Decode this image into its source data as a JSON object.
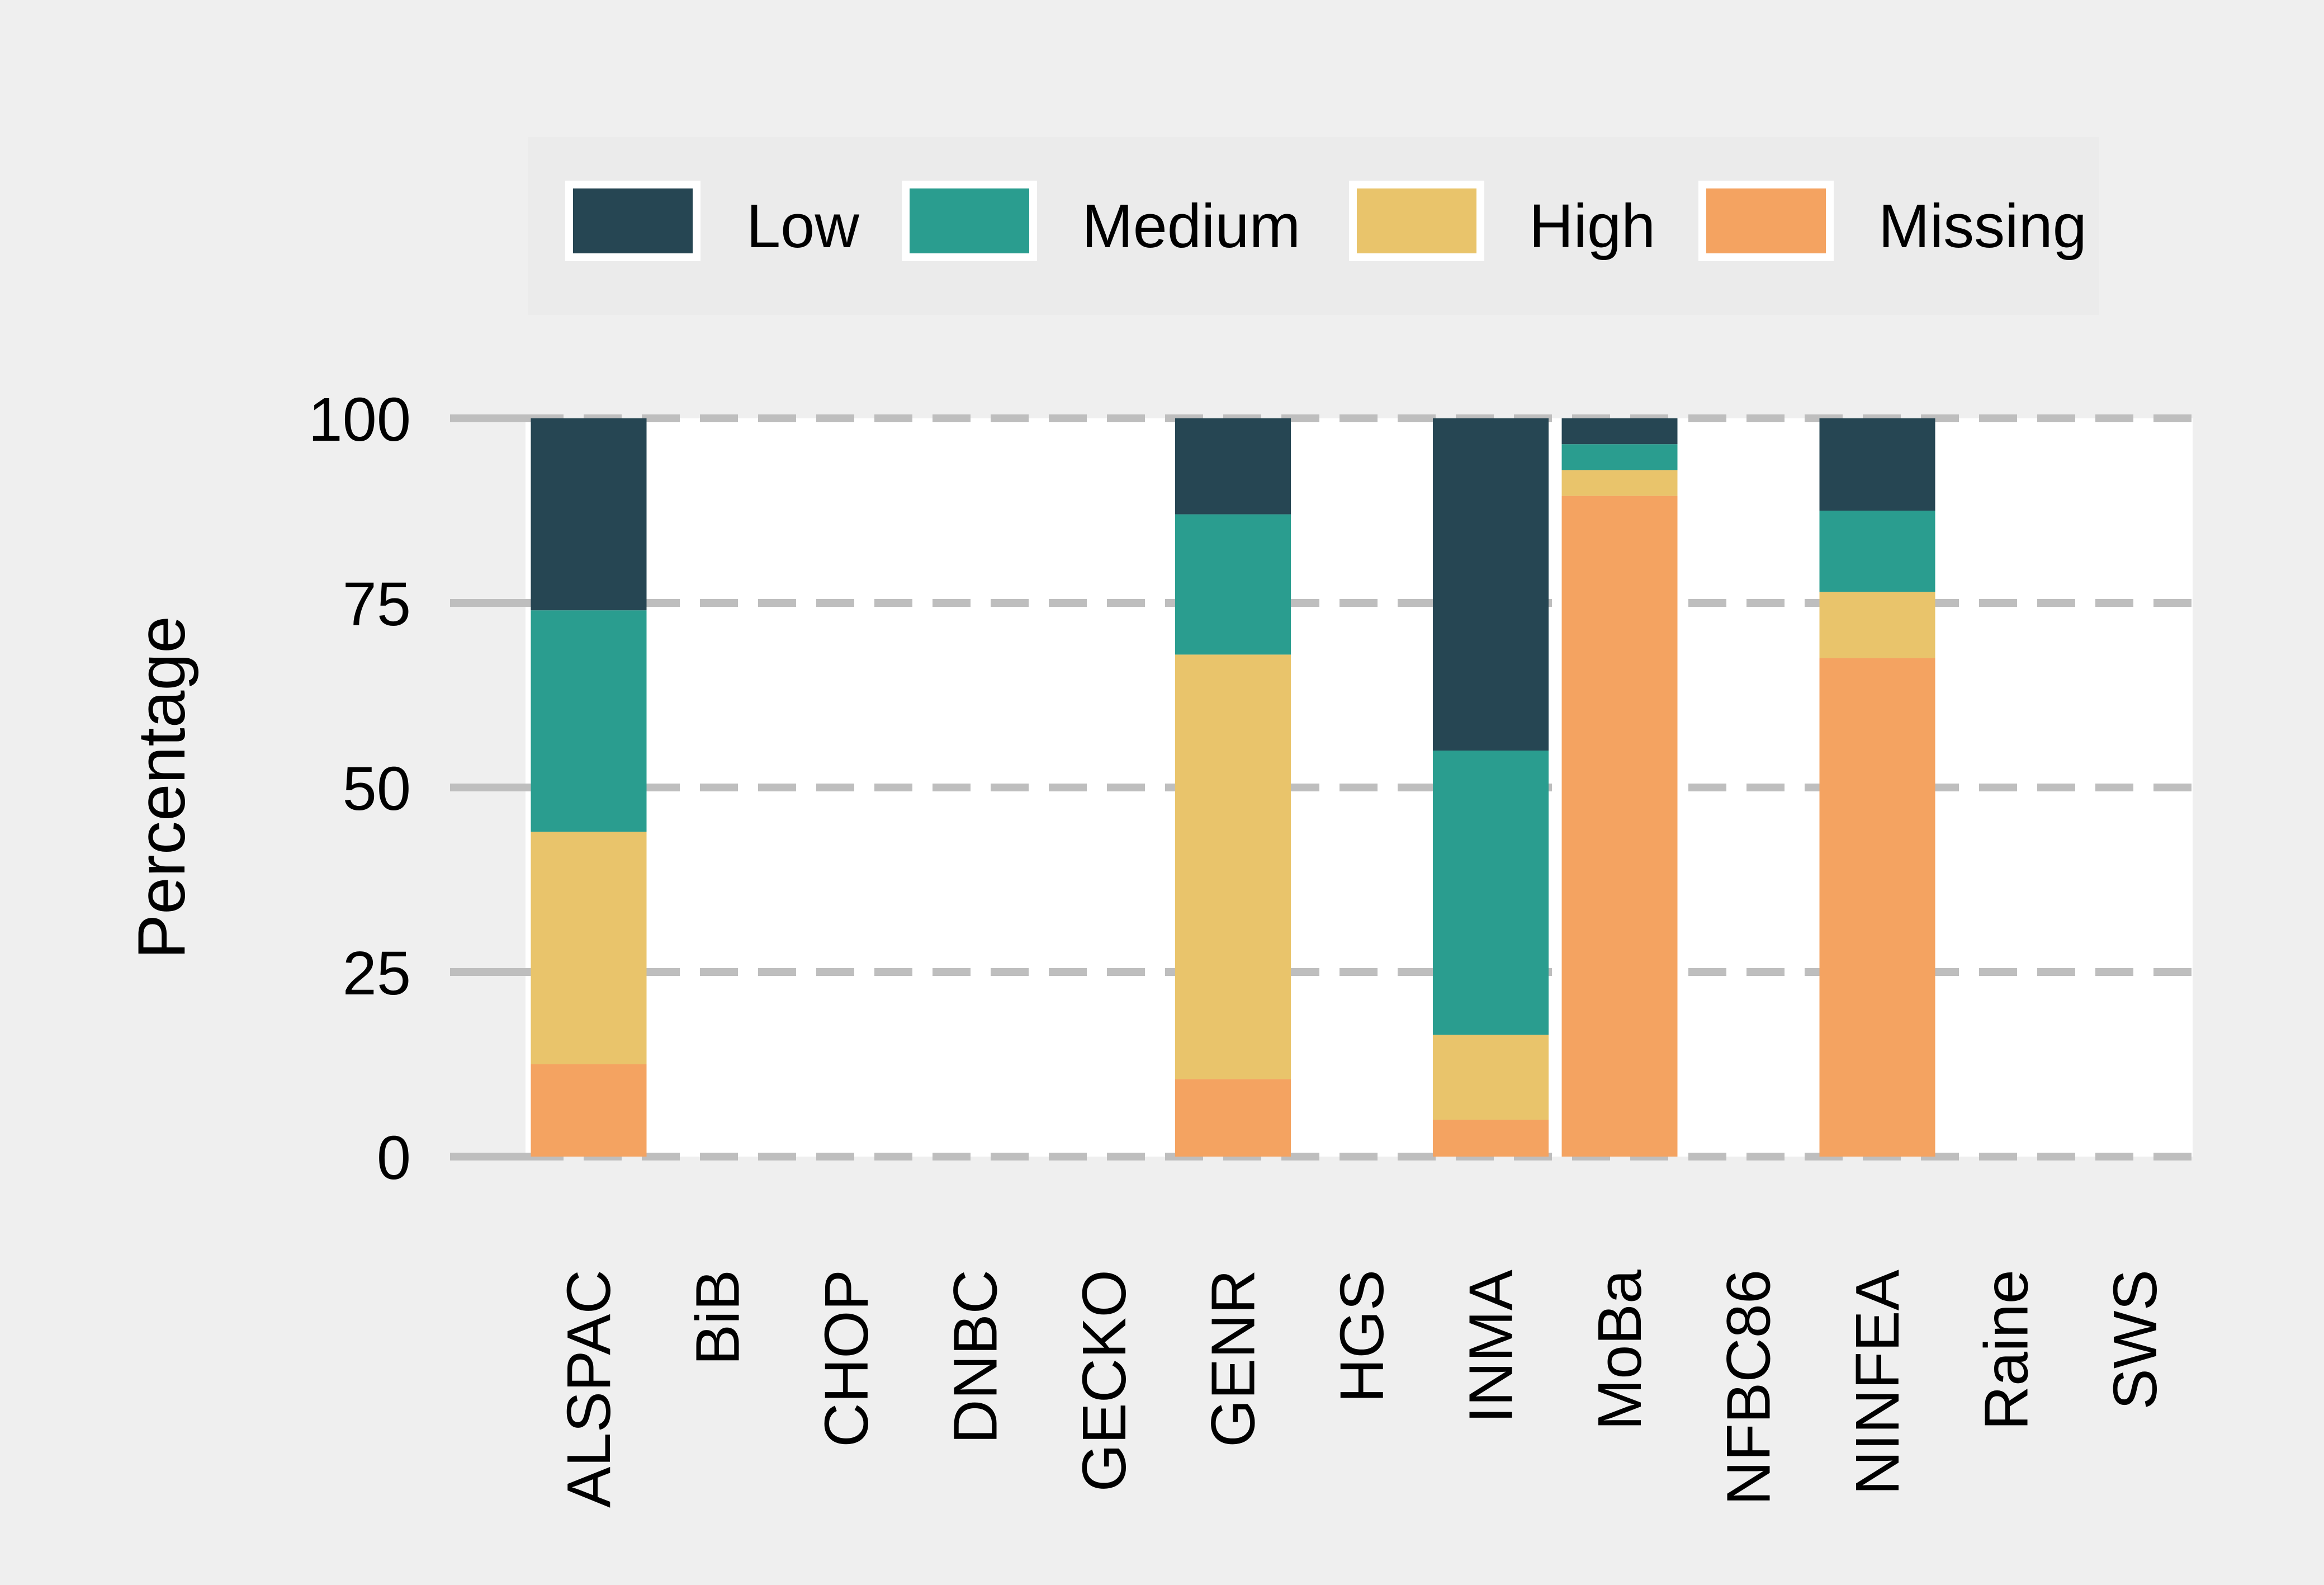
{
  "chart_data": {
    "type": "bar",
    "stacked": true,
    "title": "",
    "xlabel": "",
    "ylabel": "Percentage",
    "ylim": [
      0,
      100
    ],
    "yticks": [
      0,
      25,
      50,
      75,
      100
    ],
    "grid": true,
    "legend_position": "top",
    "categories": [
      "ALSPAC",
      "BiB",
      "CHOP",
      "DNBC",
      "GECKO",
      "GENR",
      "HGS",
      "INMA",
      "MoBa",
      "NFBC86",
      "NINFEA",
      "Raine",
      "SWS"
    ],
    "series": [
      {
        "name": "Missing",
        "color": "#F4A361",
        "values": [
          12.5,
          0,
          0,
          0,
          0,
          10.5,
          0,
          5,
          89.5,
          0,
          67.5,
          0,
          0
        ]
      },
      {
        "name": "High",
        "color": "#E9C46B",
        "values": [
          31.5,
          0,
          0,
          0,
          0,
          57.5,
          0,
          11.5,
          3.5,
          0,
          9,
          0,
          0
        ]
      },
      {
        "name": "Medium",
        "color": "#2A9D8F",
        "values": [
          30,
          0,
          0,
          0,
          0,
          19,
          0,
          38.5,
          3.5,
          0,
          11,
          0,
          0
        ]
      },
      {
        "name": "Low",
        "color": "#264653",
        "values": [
          26,
          0,
          0,
          0,
          0,
          13,
          0,
          45,
          3.5,
          0,
          12.5,
          0,
          0
        ]
      }
    ],
    "legend_order": [
      "Low",
      "Medium",
      "High",
      "Missing"
    ]
  },
  "colors": {
    "background": "#EFEFEF",
    "panel": "#FFFFFF",
    "legend_box": "#EBEBEB",
    "grid": "#BEBEBE"
  }
}
